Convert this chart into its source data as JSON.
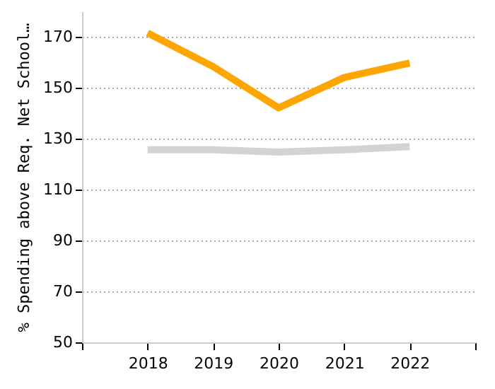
{
  "chart_data": {
    "type": "line",
    "ylabel": "% Spending above Req. Net School…",
    "x": [
      2018,
      2019,
      2020,
      2021,
      2022
    ],
    "series": [
      {
        "color": "#ffa500",
        "values": [
          171.5,
          158.3,
          142.1,
          154.0,
          159.7
        ]
      },
      {
        "color": "#d3d3d3",
        "values": [
          125.6,
          125.6,
          124.7,
          125.6,
          126.9
        ]
      }
    ],
    "xlim": [
      2017,
      2023
    ],
    "xticks": [
      {
        "value": 2017,
        "label": null
      },
      2018,
      2019,
      2020,
      2021,
      2022,
      {
        "value": 2023,
        "label": null
      }
    ],
    "ylim": [
      50,
      180
    ],
    "yticks": [
      50,
      70,
      90,
      110,
      130,
      150,
      170
    ],
    "grid": "y",
    "line_style": "solid",
    "marker": "none",
    "legend": false
  }
}
